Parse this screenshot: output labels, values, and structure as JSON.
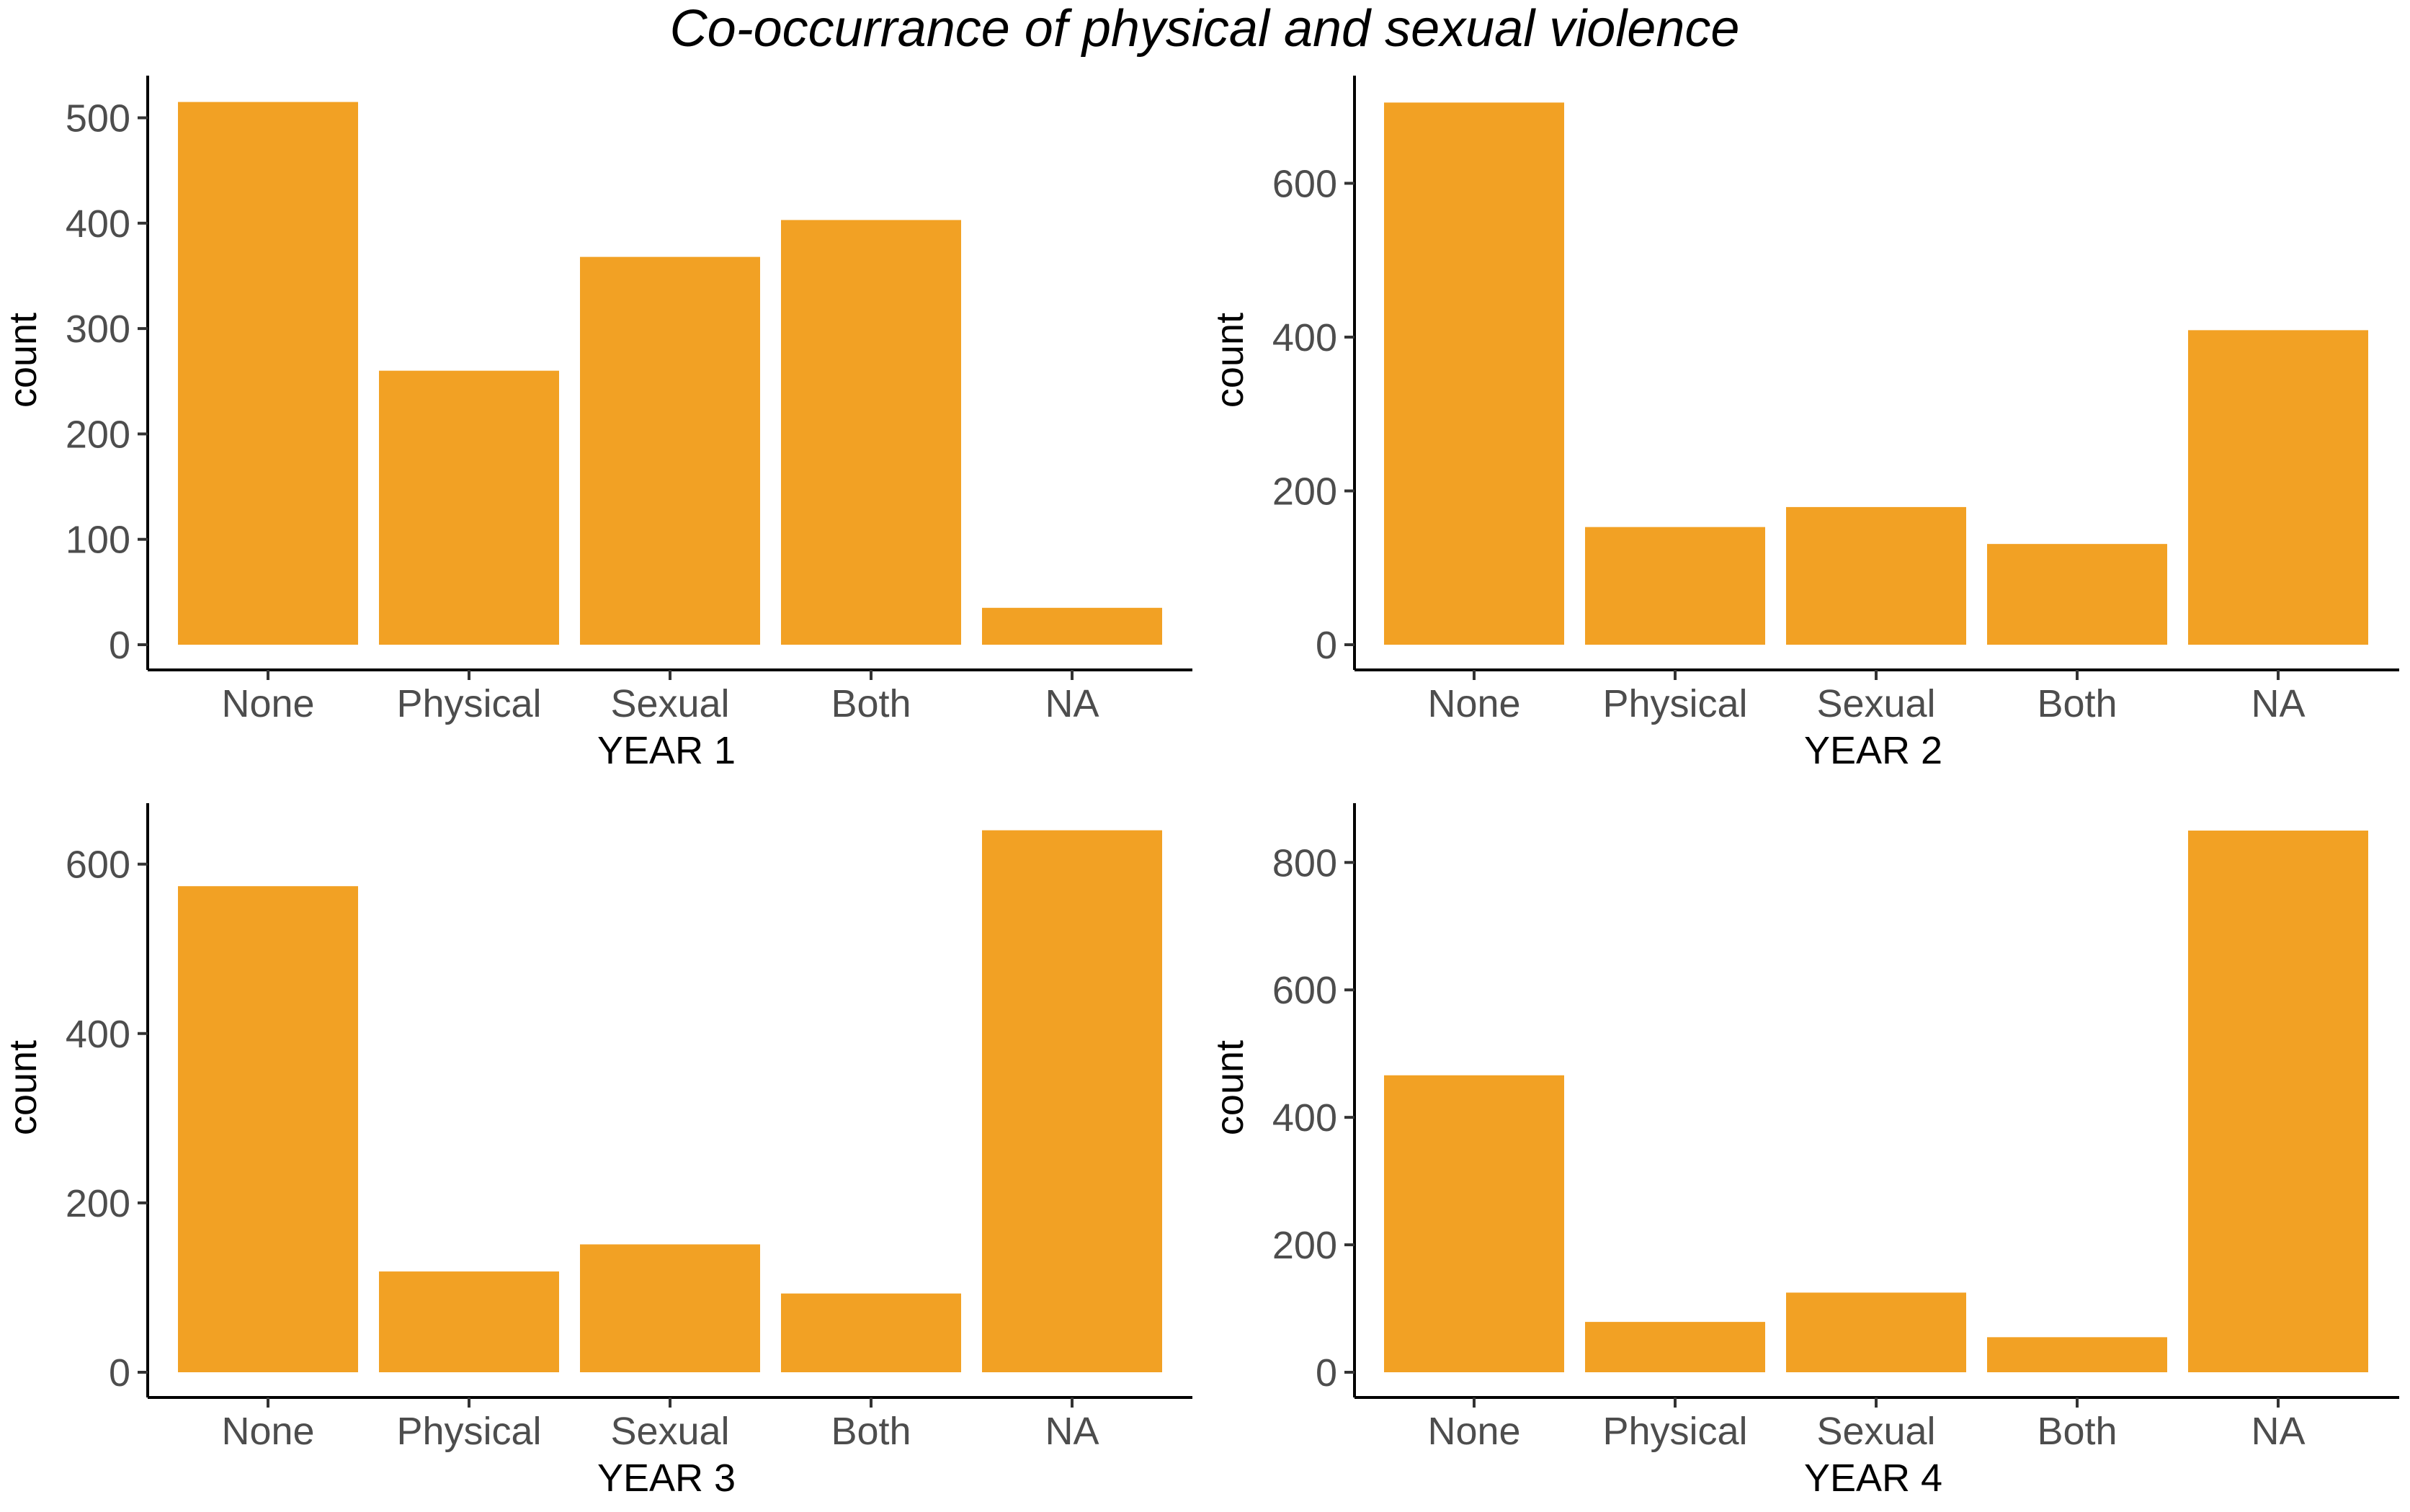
{
  "title": "Co-occurrance of physical and sexual violence",
  "colors": {
    "bar": "#f2a124",
    "axis": "#000000",
    "tick_text": "#4d4d4d",
    "background": "#ffffff"
  },
  "chart_data": [
    {
      "type": "bar",
      "categories": [
        "None",
        "Physical",
        "Sexual",
        "Both",
        "NA"
      ],
      "values": [
        515,
        260,
        368,
        403,
        35
      ],
      "xlabel": "YEAR 1",
      "ylabel": "count",
      "ylim": [
        0,
        540
      ],
      "yticks": [
        0,
        100,
        200,
        300,
        400,
        500
      ],
      "grid": false
    },
    {
      "type": "bar",
      "categories": [
        "None",
        "Physical",
        "Sexual",
        "Both",
        "NA"
      ],
      "values": [
        705,
        153,
        179,
        131,
        409
      ],
      "xlabel": "YEAR 2",
      "ylabel": "count",
      "ylim": [
        0,
        740
      ],
      "yticks": [
        0,
        200,
        400,
        600
      ],
      "grid": false
    },
    {
      "type": "bar",
      "categories": [
        "None",
        "Physical",
        "Sexual",
        "Both",
        "NA"
      ],
      "values": [
        574,
        119,
        151,
        93,
        640
      ],
      "xlabel": "YEAR 3",
      "ylabel": "count",
      "ylim": [
        0,
        672
      ],
      "yticks": [
        0,
        200,
        400,
        600
      ],
      "grid": false
    },
    {
      "type": "bar",
      "categories": [
        "None",
        "Physical",
        "Sexual",
        "Both",
        "NA"
      ],
      "values": [
        466,
        79,
        125,
        55,
        850
      ],
      "xlabel": "YEAR 4",
      "ylabel": "count",
      "ylim": [
        0,
        893
      ],
      "yticks": [
        0,
        200,
        400,
        600,
        800
      ],
      "grid": false
    }
  ]
}
